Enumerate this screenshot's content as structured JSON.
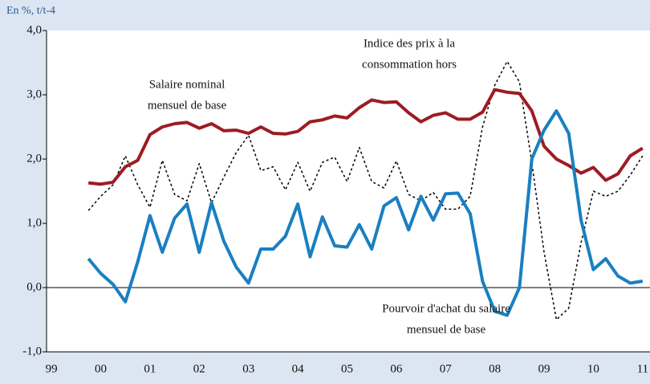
{
  "chart_data": {
    "type": "line",
    "subtitle": "En %, t/t-4",
    "x": [
      2000.25,
      2000.5,
      2000.75,
      2001,
      2001.25,
      2001.5,
      2001.75,
      2002,
      2002.25,
      2002.5,
      2002.75,
      2003,
      2003.25,
      2003.5,
      2003.75,
      2004,
      2004.25,
      2004.5,
      2004.75,
      2005,
      2005.25,
      2005.5,
      2005.75,
      2006,
      2006.25,
      2006.5,
      2006.75,
      2007,
      2007.25,
      2007.5,
      2007.75,
      2008,
      2008.25,
      2008.5,
      2008.75,
      2009,
      2009.25,
      2009.5,
      2009.75,
      2010,
      2010.25,
      2010.5,
      2010.75,
      2011,
      2011.25,
      2011.5
    ],
    "series": [
      {
        "name": "Indice des prix à la consommation hors",
        "color": "#000000",
        "dashed": true,
        "values": [
          1.2,
          1.42,
          1.6,
          2.05,
          1.6,
          1.25,
          1.98,
          1.45,
          1.35,
          1.93,
          1.32,
          1.72,
          2.1,
          2.37,
          1.82,
          1.88,
          1.52,
          1.95,
          1.5,
          1.95,
          2.03,
          1.65,
          2.18,
          1.65,
          1.55,
          1.97,
          1.45,
          1.35,
          1.48,
          1.22,
          1.22,
          1.42,
          2.5,
          3.15,
          3.52,
          3.2,
          1.95,
          0.55,
          -0.5,
          -0.32,
          0.7,
          1.5,
          1.42,
          1.5,
          1.75,
          2.05
        ]
      },
      {
        "name": "Salaire nominal mensuel de base",
        "color": "#9e1b22",
        "dashed": false,
        "values": [
          1.63,
          1.61,
          1.64,
          1.88,
          1.98,
          2.38,
          2.5,
          2.55,
          2.57,
          2.48,
          2.55,
          2.44,
          2.45,
          2.4,
          2.5,
          2.4,
          2.39,
          2.43,
          2.58,
          2.61,
          2.67,
          2.64,
          2.8,
          2.92,
          2.88,
          2.89,
          2.72,
          2.58,
          2.68,
          2.72,
          2.62,
          2.62,
          2.73,
          3.08,
          3.04,
          3.02,
          2.75,
          2.2,
          2.0,
          1.9,
          1.78,
          1.87,
          1.67,
          1.77,
          2.05,
          2.17
        ]
      },
      {
        "name": "Pourvoir d'achat du salaire mensuel de base",
        "color": "#1a7fc1",
        "dashed": false,
        "values": [
          0.45,
          0.22,
          0.05,
          -0.22,
          0.4,
          1.12,
          0.55,
          1.08,
          1.3,
          0.55,
          1.32,
          0.72,
          0.32,
          0.07,
          0.6,
          0.6,
          0.8,
          1.3,
          0.48,
          1.1,
          0.65,
          0.63,
          0.98,
          0.6,
          1.27,
          1.4,
          0.9,
          1.42,
          1.05,
          1.46,
          1.47,
          1.15,
          0.1,
          -0.37,
          -0.43,
          0.0,
          2.0,
          2.45,
          2.75,
          2.4,
          1.05,
          0.28,
          0.45,
          0.18,
          0.07,
          0.1
        ]
      }
    ],
    "annotations": [
      {
        "lines": [
          "Indice des prix à la",
          "consommation hors"
        ]
      },
      {
        "lines": [
          "Salaire nominal",
          "mensuel de base"
        ]
      },
      {
        "lines": [
          "Pourvoir d'achat du salaire",
          "mensuel de base"
        ]
      }
    ],
    "xlim": [
      1999.4,
      2011.65
    ],
    "xticks": [
      {
        "value": 1999.5,
        "label": "99"
      },
      {
        "value": 2000.5,
        "label": "00"
      },
      {
        "value": 2001.5,
        "label": "01"
      },
      {
        "value": 2002.5,
        "label": "02"
      },
      {
        "value": 2003.5,
        "label": "03"
      },
      {
        "value": 2004.5,
        "label": "04"
      },
      {
        "value": 2005.5,
        "label": "05"
      },
      {
        "value": 2006.5,
        "label": "06"
      },
      {
        "value": 2007.5,
        "label": "07"
      },
      {
        "value": 2008.5,
        "label": "08"
      },
      {
        "value": 2009.5,
        "label": "09"
      },
      {
        "value": 2010.5,
        "label": "10"
      },
      {
        "value": 2011.5,
        "label": "11"
      }
    ],
    "ylim": [
      -1,
      4
    ],
    "yticks": [
      {
        "value": -1,
        "label": "-1,0"
      },
      {
        "value": 0,
        "label": "0,0"
      },
      {
        "value": 1,
        "label": "1,0"
      },
      {
        "value": 2,
        "label": "2,0"
      },
      {
        "value": 3,
        "label": "3,0"
      },
      {
        "value": 4,
        "label": "4,0"
      }
    ],
    "zero_line": true
  }
}
